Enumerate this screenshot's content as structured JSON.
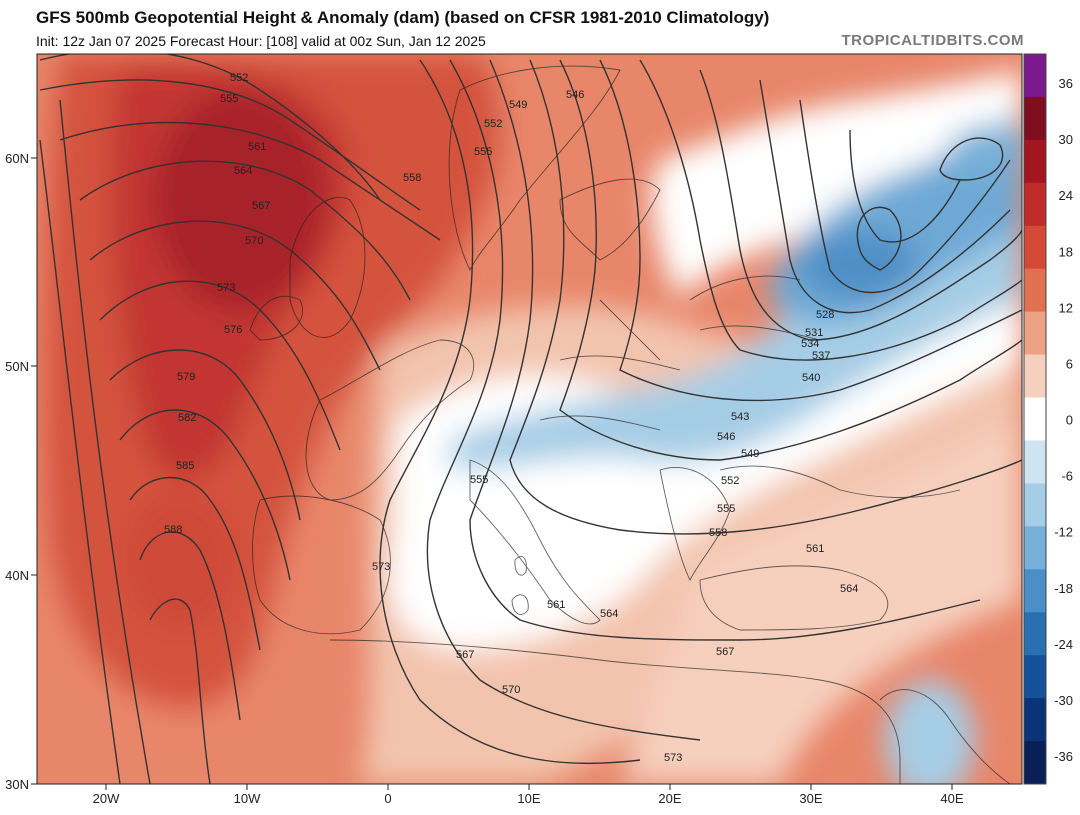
{
  "header": {
    "title": "GFS 500mb Geopotential Height & Anomaly (dam) (based on CFSR 1981-2010 Climatology)",
    "subtitle": "Init: 12z Jan 07 2025   Forecast Hour: [108]   valid at 00z Sun, Jan 12 2025",
    "watermark": "TROPICALTIDBITS.COM"
  },
  "map": {
    "lon_ticks": [
      "20W",
      "10W",
      "0",
      "10E",
      "20E",
      "30E",
      "40E"
    ],
    "lat_ticks": [
      "60N",
      "50N",
      "40N",
      "30N"
    ],
    "contour_labels": [
      "552",
      "555",
      "561",
      "564",
      "567",
      "570",
      "573",
      "576",
      "579",
      "582",
      "585",
      "588",
      "558",
      "549",
      "546",
      "552",
      "555",
      "528",
      "531",
      "534",
      "537",
      "540",
      "543",
      "546",
      "549",
      "552",
      "555",
      "558",
      "561",
      "564",
      "567",
      "570",
      "573",
      "555",
      "561",
      "564",
      "567",
      "573"
    ]
  },
  "colorbar": {
    "ticks": [
      "36",
      "30",
      "24",
      "18",
      "12",
      "6",
      "0",
      "-6",
      "-12",
      "-18",
      "-24",
      "-30",
      "-36"
    ],
    "colors": [
      "#7b1a8c",
      "#7f0f1f",
      "#a3161f",
      "#bf2a2a",
      "#d44a36",
      "#e07050",
      "#eda283",
      "#f6d0bf",
      "#ffffff",
      "#cfe4f2",
      "#a6cde6",
      "#77b0d8",
      "#4a8fc7",
      "#2a6fb0",
      "#15509a",
      "#0b3478",
      "#0a1f55"
    ]
  }
}
